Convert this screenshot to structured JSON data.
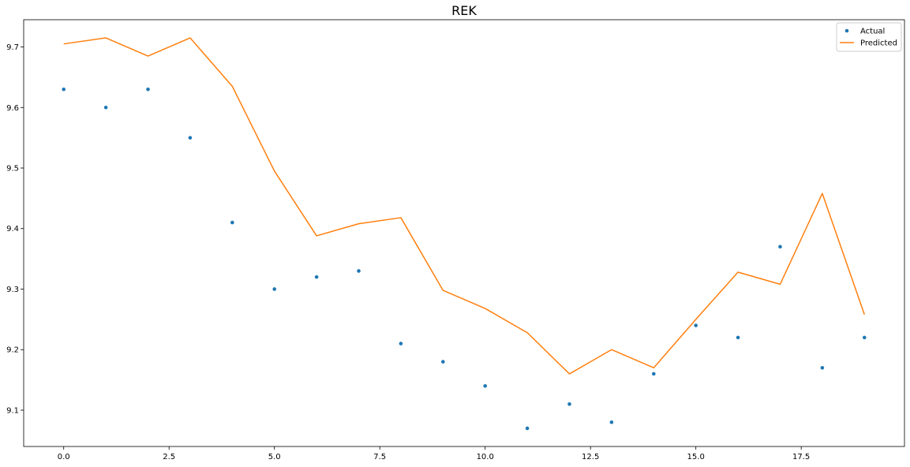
{
  "chart_data": {
    "type": "line",
    "title": "REK",
    "xlabel": "",
    "ylabel": "",
    "xlim": [
      -0.95,
      19.95
    ],
    "ylim": [
      9.04,
      9.745
    ],
    "xticks": [
      0.0,
      2.5,
      5.0,
      7.5,
      10.0,
      12.5,
      15.0,
      17.5
    ],
    "xtick_labels": [
      "0.0",
      "2.5",
      "5.0",
      "7.5",
      "10.0",
      "12.5",
      "15.0",
      "17.5"
    ],
    "yticks": [
      9.1,
      9.2,
      9.3,
      9.4,
      9.5,
      9.6,
      9.7
    ],
    "ytick_labels": [
      "9.1",
      "9.2",
      "9.3",
      "9.4",
      "9.5",
      "9.6",
      "9.7"
    ],
    "grid": false,
    "legend_position": "top-right",
    "x": [
      0,
      1,
      2,
      3,
      4,
      5,
      6,
      7,
      8,
      9,
      10,
      11,
      12,
      13,
      14,
      15,
      16,
      17,
      18,
      19
    ],
    "series": [
      {
        "name": "Actual",
        "kind": "scatter",
        "color": "#1f77b4",
        "values": [
          9.63,
          9.6,
          9.63,
          9.55,
          9.41,
          9.3,
          9.32,
          9.33,
          9.21,
          9.18,
          9.14,
          9.07,
          9.11,
          9.08,
          9.16,
          9.24,
          9.22,
          9.37,
          9.17,
          9.22
        ]
      },
      {
        "name": "Predicted",
        "kind": "line",
        "color": "#ff7f0e",
        "values": [
          9.705,
          9.715,
          9.685,
          9.715,
          9.635,
          9.495,
          9.388,
          9.408,
          9.418,
          9.298,
          9.268,
          9.228,
          9.16,
          9.2,
          9.17,
          9.25,
          9.328,
          9.308,
          9.458,
          9.258
        ]
      }
    ]
  }
}
